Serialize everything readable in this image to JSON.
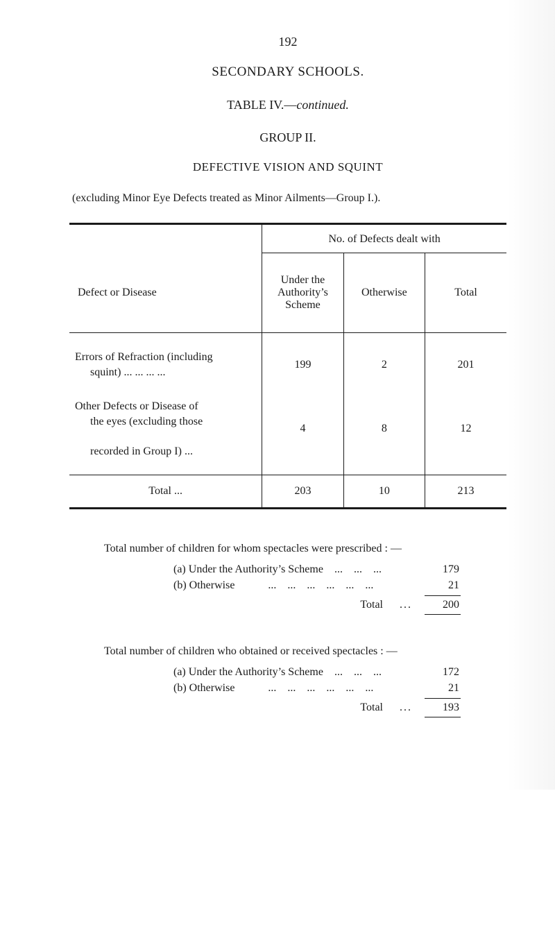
{
  "page_number": "192",
  "title_main": "SECONDARY SCHOOLS.",
  "title_sub_prefix": "TABLE IV.—",
  "title_sub_italic": "continued.",
  "group_line": "GROUP II.",
  "subject_line": "DEFECTIVE VISION AND SQUINT",
  "caption_line": "(excluding Minor Eye Defects treated as Minor Ailments—Group I.).",
  "table": {
    "span_header": "No. of Defects dealt with",
    "row_header_label": "Defect or Disease",
    "columns": [
      "Under the Authority’s Scheme",
      "Otherwise",
      "Total"
    ],
    "rows": [
      {
        "label_line1": "Errors of Refraction (including",
        "label_line2": "squint) ...      ...      ...      ...",
        "values": [
          "199",
          "2",
          "201"
        ]
      },
      {
        "label_line1": "Other Defects or Disease of",
        "label_line2": "the eyes (excluding those",
        "label_line3": "recorded in Group I)          ...",
        "values": [
          "4",
          "8",
          "12"
        ]
      }
    ],
    "total_label": "Total          ...",
    "total_values": [
      "203",
      "10",
      "213"
    ]
  },
  "prescribed": {
    "lead": "Total number of children for whom spectacles were prescribed : —",
    "a_label": "(a) Under the Authority’s Scheme    ...    ...    ...",
    "a_value": "179",
    "b_label": "(b) Otherwise            ...    ...    ...    ...    ...    ...",
    "b_value": "21",
    "total_label": "Total",
    "total_dots": "...",
    "total_value": "200"
  },
  "obtained": {
    "lead": "Total number of children who obtained or received spectacles : —",
    "a_label": "(a) Under the Authority’s Scheme    ...    ...    ...",
    "a_value": "172",
    "b_label": "(b) Otherwise            ...    ...    ...    ...    ...    ...",
    "b_value": "21",
    "total_label": "Total",
    "total_dots": "...",
    "total_value": "193"
  }
}
